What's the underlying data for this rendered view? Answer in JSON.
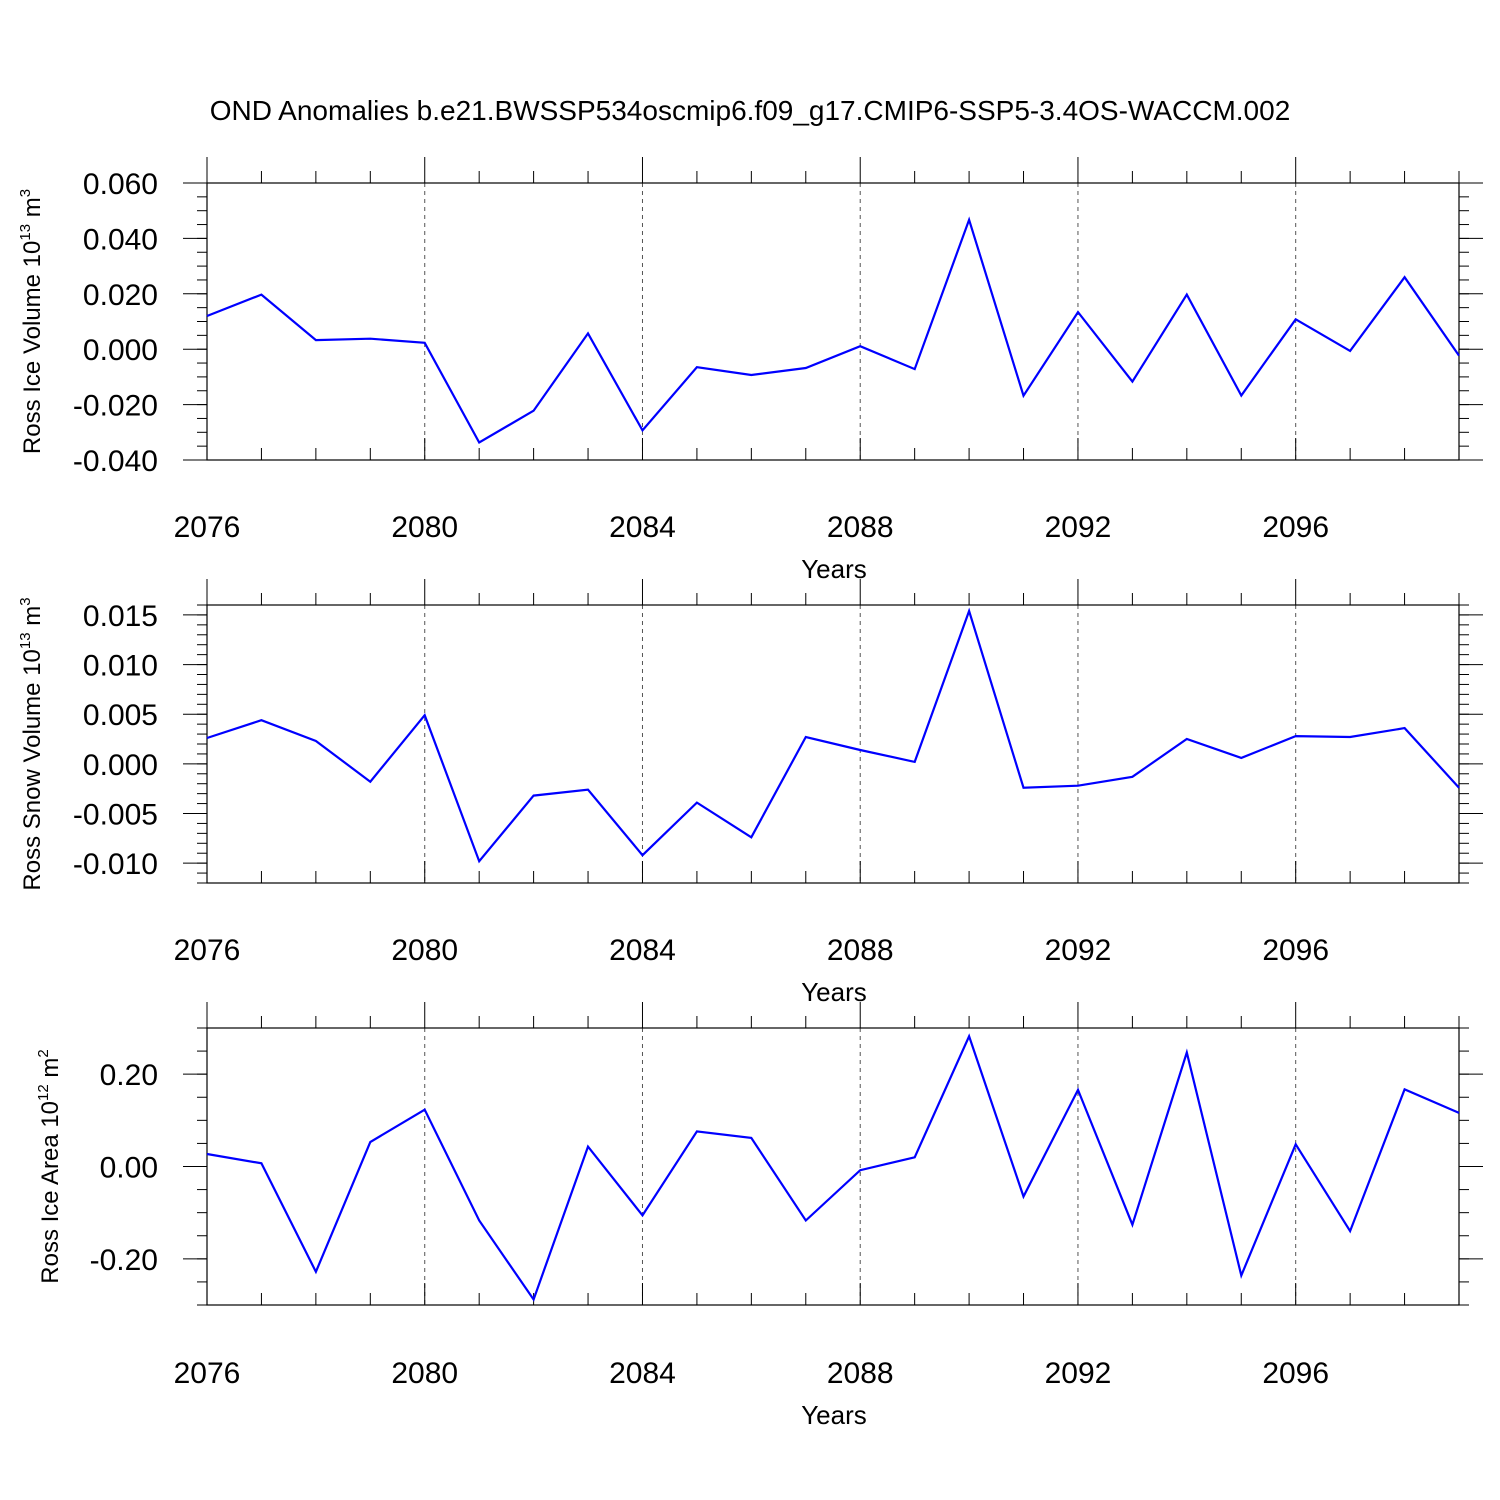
{
  "title": "OND Anomalies b.e21.BWSSP534oscmip6.f09_g17.CMIP6-SSP5-3.4OS-WACCM.002",
  "chart_data": [
    {
      "type": "line",
      "ylabel": {
        "text": "Ross Ice Volume 10",
        "exp": "13",
        "unit": " m",
        "unit_exp": "3"
      },
      "xlabel": "Years",
      "xlim": [
        2076,
        2099
      ],
      "ylim": [
        -0.04,
        0.06
      ],
      "x_ticks": [
        2076,
        2080,
        2084,
        2088,
        2092,
        2096
      ],
      "x_tick_labels": [
        "2076",
        "2080",
        "2084",
        "2088",
        "2092",
        "2096"
      ],
      "y_ticks": [
        -0.04,
        -0.02,
        0.0,
        0.02,
        0.04,
        0.06
      ],
      "y_tick_labels": [
        "-0.040",
        "-0.020",
        "0.000",
        "0.020",
        "0.040",
        "0.060"
      ],
      "y_minor_step": 0.005,
      "grid": "dashed vertical at major x ticks",
      "series": [
        {
          "color": "#0000ff",
          "x": [
            2076,
            2077,
            2078,
            2079,
            2080,
            2081,
            2082,
            2083,
            2084,
            2085,
            2086,
            2087,
            2088,
            2089,
            2090,
            2091,
            2092,
            2093,
            2094,
            2095,
            2096,
            2097,
            2098,
            2099
          ],
          "values": [
            0.012,
            0.0197,
            0.0033,
            0.0038,
            0.0023,
            -0.0337,
            -0.0222,
            0.0057,
            -0.0293,
            -0.0065,
            -0.0093,
            -0.0068,
            0.0011,
            -0.0072,
            0.0467,
            -0.0168,
            0.0134,
            -0.0117,
            0.0197,
            -0.0167,
            0.0108,
            -0.0006,
            0.026,
            -0.0023
          ]
        }
      ]
    },
    {
      "type": "line",
      "ylabel": {
        "text": "Ross Snow Volume 10",
        "exp": "13",
        "unit": " m",
        "unit_exp": "3"
      },
      "xlabel": "Years",
      "xlim": [
        2076,
        2099
      ],
      "ylim": [
        -0.012,
        0.016
      ],
      "x_ticks": [
        2076,
        2080,
        2084,
        2088,
        2092,
        2096
      ],
      "x_tick_labels": [
        "2076",
        "2080",
        "2084",
        "2088",
        "2092",
        "2096"
      ],
      "y_ticks": [
        -0.01,
        -0.005,
        0.0,
        0.005,
        0.01,
        0.015
      ],
      "y_tick_labels": [
        "-0.010",
        "-0.005",
        "0.000",
        "0.005",
        "0.010",
        "0.015"
      ],
      "y_minor_step": 0.001,
      "grid": "dashed vertical at major x ticks",
      "series": [
        {
          "color": "#0000ff",
          "x": [
            2076,
            2077,
            2078,
            2079,
            2080,
            2081,
            2082,
            2083,
            2084,
            2085,
            2086,
            2087,
            2088,
            2089,
            2090,
            2091,
            2092,
            2093,
            2094,
            2095,
            2096,
            2097,
            2098,
            2099
          ],
          "values": [
            0.0026,
            0.0044,
            0.0023,
            -0.0018,
            0.0049,
            -0.0098,
            -0.0032,
            -0.0026,
            -0.0092,
            -0.0039,
            -0.0074,
            0.0027,
            0.0014,
            0.0002,
            0.0154,
            -0.0024,
            -0.0022,
            -0.0013,
            0.0025,
            0.0006,
            0.0028,
            0.0027,
            0.0036,
            -0.0024
          ]
        }
      ]
    },
    {
      "type": "line",
      "ylabel": {
        "text": "Ross Ice Area 10",
        "exp": "12",
        "unit": " m",
        "unit_exp": "2"
      },
      "xlabel": "Years",
      "xlim": [
        2076,
        2099
      ],
      "ylim": [
        -0.3,
        0.3
      ],
      "x_ticks": [
        2076,
        2080,
        2084,
        2088,
        2092,
        2096
      ],
      "x_tick_labels": [
        "2076",
        "2080",
        "2084",
        "2088",
        "2092",
        "2096"
      ],
      "y_ticks": [
        -0.2,
        0.0,
        0.2
      ],
      "y_tick_labels": [
        "-0.20",
        "0.00",
        "0.20"
      ],
      "y_minor_step": 0.05,
      "grid": "dashed vertical at major x ticks",
      "series": [
        {
          "color": "#0000ff",
          "x": [
            2076,
            2077,
            2078,
            2079,
            2080,
            2081,
            2082,
            2083,
            2084,
            2085,
            2086,
            2087,
            2088,
            2089,
            2090,
            2091,
            2092,
            2093,
            2094,
            2095,
            2096,
            2097,
            2098,
            2099
          ],
          "values": [
            0.027,
            0.007,
            -0.228,
            0.053,
            0.123,
            -0.117,
            -0.288,
            0.043,
            -0.106,
            0.076,
            0.062,
            -0.117,
            -0.008,
            0.02,
            0.282,
            -0.065,
            0.166,
            -0.126,
            0.247,
            -0.236,
            0.048,
            -0.14,
            0.167,
            0.116
          ]
        }
      ]
    }
  ]
}
